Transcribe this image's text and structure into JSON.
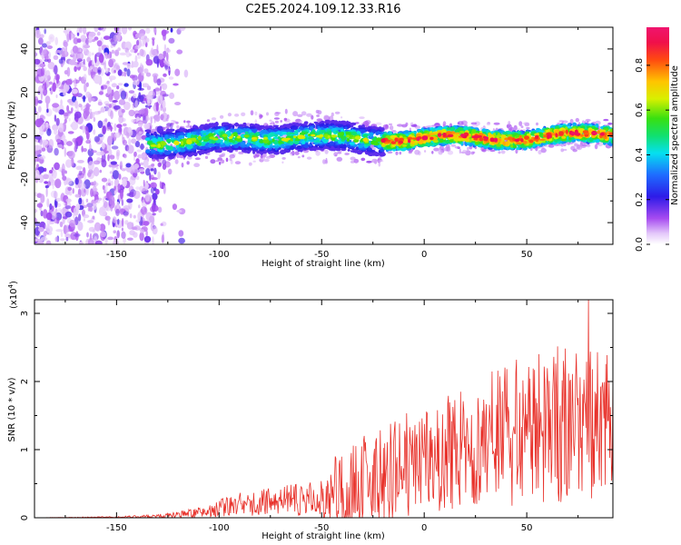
{
  "title": "C2E5.2024.109.12.33.R16",
  "colors": {
    "snr_line": "#e8312a",
    "axis": "#000000"
  },
  "chart_data": [
    {
      "type": "heatmap",
      "xlabel": "Height of straight line (km)",
      "ylabel": "Frequency (Hz)",
      "xlim": [
        -190,
        92
      ],
      "ylim": [
        -50,
        50
      ],
      "x_ticks": [
        -150,
        -100,
        -50,
        0,
        50
      ],
      "y_ticks": [
        -40,
        -20,
        0,
        20,
        40
      ],
      "colorbar": {
        "label": "Normalized spectral amplitude",
        "range": [
          0,
          1
        ],
        "ticks": [
          "0.0",
          "0.2",
          "0.4",
          "0.6",
          "0.8"
        ],
        "colormap": "white-violet-blue-cyan-green-yellow-orange-red-magenta"
      },
      "features": {
        "noise_region_x": [
          -190,
          -120
        ],
        "signal_band_start_x": -135,
        "signal_band_center_hz": [
          [
            -135,
            -3
          ],
          [
            -100,
            -2
          ],
          [
            -60,
            0
          ],
          [
            -30,
            -2
          ],
          [
            0,
            -1
          ],
          [
            50,
            -1
          ],
          [
            90,
            1
          ]
        ],
        "signal_band_halfwidth_hz": 4
      }
    },
    {
      "type": "line",
      "xlabel": "Height of straight line (km)",
      "ylabel": "SNR (10 * v/v)",
      "y_scale_label": "(x10",
      "y_scale_exp": "4",
      "y_scale_close": ")",
      "xlim": [
        -190,
        92
      ],
      "ylim": [
        0,
        3.2
      ],
      "x_ticks": [
        -150,
        -100,
        -50,
        0,
        50
      ],
      "y_ticks": [
        0,
        1,
        2,
        3
      ],
      "series": [
        {
          "envelope_x": [
            -190,
            -150,
            -130,
            -120,
            -110,
            -100,
            -90,
            -80,
            -70,
            -60,
            -50,
            -40,
            -30,
            -20,
            -10,
            0,
            10,
            20,
            30,
            40,
            50,
            60,
            70,
            80,
            92
          ],
          "envelope_mean": [
            0.0,
            0.01,
            0.02,
            0.04,
            0.08,
            0.14,
            0.2,
            0.22,
            0.25,
            0.28,
            0.3,
            0.45,
            0.55,
            0.6,
            0.75,
            0.85,
            0.95,
            1.05,
            1.15,
            1.25,
            1.3,
            1.35,
            1.4,
            1.35,
            1.4
          ],
          "envelope_amp": [
            0.0,
            0.01,
            0.03,
            0.05,
            0.08,
            0.12,
            0.18,
            0.2,
            0.22,
            0.25,
            0.35,
            0.6,
            0.7,
            0.7,
            0.8,
            0.8,
            0.85,
            0.9,
            0.95,
            1.1,
            1.1,
            1.15,
            1.2,
            1.1,
            1.0
          ],
          "peak_x": 80,
          "peak_y": 3.2
        }
      ]
    }
  ]
}
